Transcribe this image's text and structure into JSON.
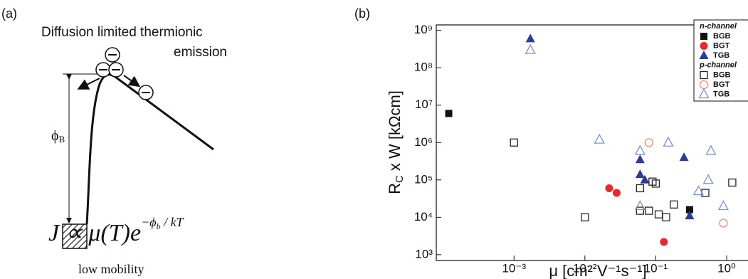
{
  "panel_a": {
    "label": "(a)",
    "title_line1": "Diffusion limited thermionic",
    "title_line2": "emission",
    "barrier": {
      "symbol": "ϕ",
      "sub": "B"
    },
    "formula": {
      "lhs": "J ∝ μ(T)e",
      "exp_main": "−ϕ",
      "exp_sub": "b",
      "exp_rest": " / kT"
    },
    "caption": "low mobility"
  },
  "chart_data": {
    "type": "scatter",
    "panel_label": "(b)",
    "x_label": "μ [cm² V⁻¹s⁻¹]",
    "y_label": {
      "main": "R",
      "sub": "C",
      "rest": " x W [kΩcm]"
    },
    "log_x": true,
    "log_y": true,
    "xlim": [
      8e-05,
      2
    ],
    "ylim": [
      700,
      1400000000
    ],
    "xticks": [
      {
        "value": 0.001,
        "label": "10⁻³"
      },
      {
        "value": 0.01,
        "label": "10⁻²"
      },
      {
        "value": 0.1,
        "label": "10⁻¹"
      },
      {
        "value": 1,
        "label": "10⁰"
      }
    ],
    "yticks": [
      {
        "value": 1000,
        "label": "10³"
      },
      {
        "value": 10000,
        "label": "10⁴"
      },
      {
        "value": 100000,
        "label": "10⁵"
      },
      {
        "value": 1000000,
        "label": "10⁶"
      },
      {
        "value": 10000000,
        "label": "10⁷"
      },
      {
        "value": 100000000,
        "label": "10⁸"
      },
      {
        "value": 1000000000,
        "label": "10⁹"
      }
    ],
    "legend": "upper right",
    "groups": [
      {
        "name": "n-channel",
        "series": [
          {
            "name": "BGB",
            "marker": "square",
            "filled": true,
            "color": "#111111",
            "x": [
              0.00012,
              0.3
            ],
            "values": [
              6000000,
              16000
            ]
          },
          {
            "name": "BGT",
            "marker": "circle",
            "filled": true,
            "color": "#e8282b",
            "x": [
              0.022,
              0.028,
              0.13
            ],
            "values": [
              60000,
              45000,
              2200
            ]
          },
          {
            "name": "TGB",
            "marker": "triangle",
            "filled": true,
            "color": "#2b3b9a",
            "x": [
              0.0017,
              0.06,
              0.06,
              0.07,
              0.25,
              0.3
            ],
            "values": [
              600000000,
              350000,
              140000,
              100000,
              400000,
              11000
            ]
          }
        ]
      },
      {
        "name": "p-channel",
        "series": [
          {
            "name": "BGB",
            "marker": "square",
            "filled": false,
            "color": "#222222",
            "x": [
              0.001,
              0.01,
              0.06,
              0.09,
              0.1,
              0.06,
              0.08,
              0.11,
              0.14,
              0.18,
              0.5,
              1.2
            ],
            "values": [
              1000000,
              10000,
              60000,
              90000,
              80000,
              15000,
              15000,
              12000,
              10000,
              22000,
              45000,
              85000
            ]
          },
          {
            "name": "BGT",
            "marker": "circle",
            "filled": false,
            "color": "#f08a7a",
            "x": [
              0.08,
              0.9
            ],
            "values": [
              1000000,
              7000
            ]
          },
          {
            "name": "TGB",
            "marker": "triangle",
            "filled": false,
            "color": "#7a8fd6",
            "x": [
              0.0017,
              0.016,
              0.06,
              0.06,
              0.15,
              0.4,
              0.55,
              0.6,
              0.9
            ],
            "values": [
              300000000,
              1200000,
              600000,
              20000,
              1000000,
              50000,
              100000,
              600000,
              20000
            ]
          }
        ]
      }
    ]
  }
}
